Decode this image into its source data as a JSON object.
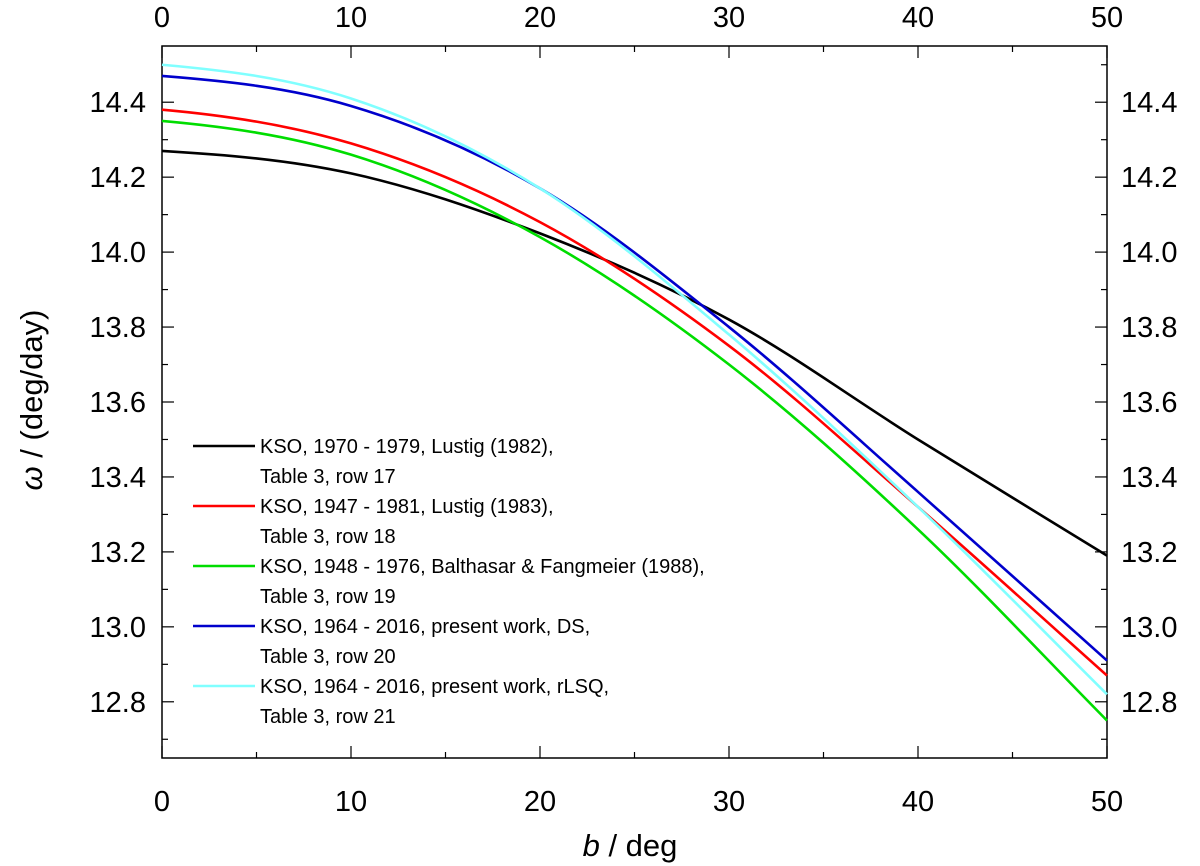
{
  "chart_data": {
    "type": "line",
    "title": "",
    "xlabel_italic": "b",
    "xlabel_rest": " / deg",
    "ylabel_italic": "ω",
    "ylabel_rest": " / (deg/day)",
    "xlim": [
      0,
      50
    ],
    "ylim": [
      12.65,
      14.55
    ],
    "x_ticks": [
      0,
      10,
      20,
      30,
      40,
      50
    ],
    "x_tick_labels": [
      "0",
      "10",
      "20",
      "30",
      "40",
      "50"
    ],
    "y_ticks": [
      12.8,
      13.0,
      13.2,
      13.4,
      13.6,
      13.8,
      14.0,
      14.2,
      14.4
    ],
    "y_tick_labels": [
      "12.8",
      "13.0",
      "13.2",
      "13.4",
      "13.6",
      "13.8",
      "14.0",
      "14.2",
      "14.4"
    ],
    "grid": false,
    "legend_position": "lower-left",
    "series": [
      {
        "name": "KSO, 1970 - 1979, Lustig (1982),",
        "name_line2": "Table 3, row 17",
        "color": "#000000",
        "x": [
          0,
          10,
          20,
          30,
          40,
          50
        ],
        "y": [
          14.27,
          14.21,
          14.05,
          13.82,
          13.5,
          13.19
        ]
      },
      {
        "name": "KSO, 1947 - 1981, Lustig (1983),",
        "name_line2": "Table 3, row 18",
        "color": "#ff0000",
        "x": [
          0,
          10,
          20,
          30,
          40,
          50
        ],
        "y": [
          14.38,
          14.29,
          14.08,
          13.75,
          13.32,
          12.87
        ]
      },
      {
        "name": "KSO, 1948 - 1976, Balthasar & Fangmeier (1988),",
        "name_line2": "Table 3, row 19",
        "color": "#00dd00",
        "x": [
          0,
          10,
          20,
          30,
          40,
          50
        ],
        "y": [
          14.35,
          14.26,
          14.04,
          13.7,
          13.26,
          12.75
        ]
      },
      {
        "name": "KSO, 1964 - 2016, present work, DS,",
        "name_line2": "Table 3, row 20",
        "color": "#0000cc",
        "x": [
          0,
          10,
          20,
          30,
          40,
          50
        ],
        "y": [
          14.47,
          14.39,
          14.17,
          13.8,
          13.36,
          12.91
        ]
      },
      {
        "name": "KSO, 1964 - 2016, present work, rLSQ,",
        "name_line2": "Table 3, row 21",
        "color": "#80ffff",
        "x": [
          0,
          10,
          20,
          30,
          40,
          50
        ],
        "y": [
          14.5,
          14.41,
          14.17,
          13.78,
          13.32,
          12.82
        ]
      }
    ]
  }
}
